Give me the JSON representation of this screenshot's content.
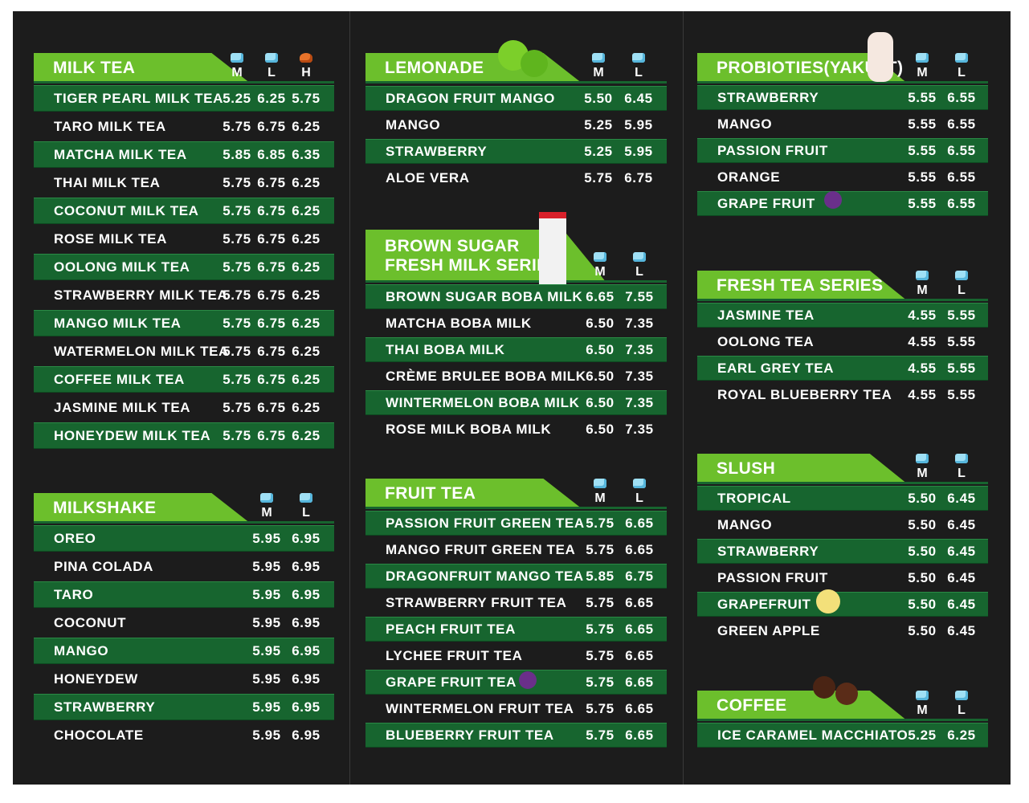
{
  "sections": [
    {
      "title": [
        "MILK TEA"
      ],
      "sizes": [
        "M",
        "L",
        "H"
      ],
      "items": [
        {
          "name": "TIGER PEARL MILK TEA",
          "prices": [
            "5.25",
            "6.25",
            "5.75"
          ]
        },
        {
          "name": "TARO MILK TEA",
          "prices": [
            "5.75",
            "6.75",
            "6.25"
          ]
        },
        {
          "name": "MATCHA MILK TEA",
          "prices": [
            "5.85",
            "6.85",
            "6.35"
          ]
        },
        {
          "name": "THAI MILK TEA",
          "prices": [
            "5.75",
            "6.75",
            "6.25"
          ]
        },
        {
          "name": "COCONUT MILK TEA",
          "prices": [
            "5.75",
            "6.75",
            "6.25"
          ]
        },
        {
          "name": "ROSE MILK TEA",
          "prices": [
            "5.75",
            "6.75",
            "6.25"
          ]
        },
        {
          "name": "OOLONG MILK TEA",
          "prices": [
            "5.75",
            "6.75",
            "6.25"
          ]
        },
        {
          "name": "STRAWBERRY MILK TEA",
          "prices": [
            "5.75",
            "6.75",
            "6.25"
          ]
        },
        {
          "name": "MANGO MILK TEA",
          "prices": [
            "5.75",
            "6.75",
            "6.25"
          ]
        },
        {
          "name": "WATERMELON MILK TEA",
          "prices": [
            "5.75",
            "6.75",
            "6.25"
          ]
        },
        {
          "name": "COFFEE MILK TEA",
          "prices": [
            "5.75",
            "6.75",
            "6.25"
          ]
        },
        {
          "name": "JASMINE MILK TEA",
          "prices": [
            "5.75",
            "6.75",
            "6.25"
          ]
        },
        {
          "name": "HONEYDEW MILK TEA",
          "prices": [
            "5.75",
            "6.75",
            "6.25"
          ]
        }
      ]
    },
    {
      "title": [
        "MILKSHAKE"
      ],
      "sizes": [
        "M",
        "L"
      ],
      "items": [
        {
          "name": "OREO",
          "prices": [
            "5.95",
            "6.95"
          ]
        },
        {
          "name": "PINA COLADA",
          "prices": [
            "5.95",
            "6.95"
          ]
        },
        {
          "name": "TARO",
          "prices": [
            "5.95",
            "6.95"
          ]
        },
        {
          "name": "COCONUT",
          "prices": [
            "5.95",
            "6.95"
          ]
        },
        {
          "name": "MANGO",
          "prices": [
            "5.95",
            "6.95"
          ]
        },
        {
          "name": "HONEYDEW",
          "prices": [
            "5.95",
            "6.95"
          ]
        },
        {
          "name": "STRAWBERRY",
          "prices": [
            "5.95",
            "6.95"
          ]
        },
        {
          "name": "CHOCOLATE",
          "prices": [
            "5.95",
            "6.95"
          ]
        }
      ]
    },
    {
      "title": [
        "LEMONADE"
      ],
      "sizes": [
        "M",
        "L"
      ],
      "items": [
        {
          "name": "DRAGON FRUIT MANGO",
          "prices": [
            "5.50",
            "6.45"
          ]
        },
        {
          "name": "MANGO",
          "prices": [
            "5.25",
            "5.95"
          ]
        },
        {
          "name": "STRAWBERRY",
          "prices": [
            "5.25",
            "5.95"
          ]
        },
        {
          "name": "ALOE VERA",
          "prices": [
            "5.75",
            "6.75"
          ]
        }
      ]
    },
    {
      "title": [
        "BROWN SUGAR",
        "FRESH MILK SERIES"
      ],
      "sizes": [
        "M",
        "L"
      ],
      "items": [
        {
          "name": "BROWN SUGAR BOBA MILK",
          "prices": [
            "6.65",
            "7.55"
          ]
        },
        {
          "name": "MATCHA BOBA MILK",
          "prices": [
            "6.50",
            "7.35"
          ]
        },
        {
          "name": "THAI BOBA MILK",
          "prices": [
            "6.50",
            "7.35"
          ]
        },
        {
          "name": "CRÈME BRULEE BOBA MILK",
          "prices": [
            "6.50",
            "7.35"
          ]
        },
        {
          "name": "WINTERMELON BOBA MILK",
          "prices": [
            "6.50",
            "7.35"
          ]
        },
        {
          "name": "ROSE MILK BOBA MILK",
          "prices": [
            "6.50",
            "7.35"
          ]
        }
      ]
    },
    {
      "title": [
        "FRUIT TEA"
      ],
      "sizes": [
        "M",
        "L"
      ],
      "items": [
        {
          "name": "PASSION FRUIT GREEN TEA",
          "prices": [
            "5.75",
            "6.65"
          ]
        },
        {
          "name": "MANGO FRUIT GREEN TEA",
          "prices": [
            "5.75",
            "6.65"
          ]
        },
        {
          "name": "DRAGONFRUIT MANGO TEA",
          "prices": [
            "5.85",
            "6.75"
          ]
        },
        {
          "name": "STRAWBERRY FRUIT TEA",
          "prices": [
            "5.75",
            "6.65"
          ]
        },
        {
          "name": "PEACH FRUIT TEA",
          "prices": [
            "5.75",
            "6.65"
          ]
        },
        {
          "name": "LYCHEE FRUIT TEA",
          "prices": [
            "5.75",
            "6.65"
          ]
        },
        {
          "name": "GRAPE FRUIT TEA",
          "prices": [
            "5.75",
            "6.65"
          ]
        },
        {
          "name": "WINTERMELON FRUIT TEA",
          "prices": [
            "5.75",
            "6.65"
          ]
        },
        {
          "name": "BLUEBERRY FRUIT TEA",
          "prices": [
            "5.75",
            "6.65"
          ]
        }
      ]
    },
    {
      "title": [
        "PROBIOTIES(YAKULT)"
      ],
      "sizes": [
        "M",
        "L"
      ],
      "items": [
        {
          "name": "STRAWBERRY",
          "prices": [
            "5.55",
            "6.55"
          ]
        },
        {
          "name": "MANGO",
          "prices": [
            "5.55",
            "6.55"
          ]
        },
        {
          "name": "PASSION FRUIT",
          "prices": [
            "5.55",
            "6.55"
          ]
        },
        {
          "name": "ORANGE",
          "prices": [
            "5.55",
            "6.55"
          ]
        },
        {
          "name": "GRAPE FRUIT",
          "prices": [
            "5.55",
            "6.55"
          ]
        }
      ]
    },
    {
      "title": [
        "FRESH TEA SERIES"
      ],
      "sizes": [
        "M",
        "L"
      ],
      "items": [
        {
          "name": "JASMINE TEA",
          "prices": [
            "4.55",
            "5.55"
          ]
        },
        {
          "name": "OOLONG TEA",
          "prices": [
            "4.55",
            "5.55"
          ]
        },
        {
          "name": "EARL GREY TEA",
          "prices": [
            "4.55",
            "5.55"
          ]
        },
        {
          "name": "ROYAL BLUEBERRY TEA",
          "prices": [
            "4.55",
            "5.55"
          ]
        }
      ]
    },
    {
      "title": [
        "SLUSH"
      ],
      "sizes": [
        "M",
        "L"
      ],
      "items": [
        {
          "name": "TROPICAL",
          "prices": [
            "5.50",
            "6.45"
          ]
        },
        {
          "name": "MANGO",
          "prices": [
            "5.50",
            "6.45"
          ]
        },
        {
          "name": "STRAWBERRY",
          "prices": [
            "5.50",
            "6.45"
          ]
        },
        {
          "name": "PASSION FRUIT",
          "prices": [
            "5.50",
            "6.45"
          ]
        },
        {
          "name": "GRAPEFRUIT",
          "prices": [
            "5.50",
            "6.45"
          ]
        },
        {
          "name": "GREEN APPLE",
          "prices": [
            "5.50",
            "6.45"
          ]
        }
      ]
    },
    {
      "title": [
        "COFFEE"
      ],
      "sizes": [
        "M",
        "L"
      ],
      "items": [
        {
          "name": "ICE CARAMEL MACCHIATO",
          "prices": [
            "5.25",
            "6.25"
          ]
        }
      ]
    }
  ]
}
